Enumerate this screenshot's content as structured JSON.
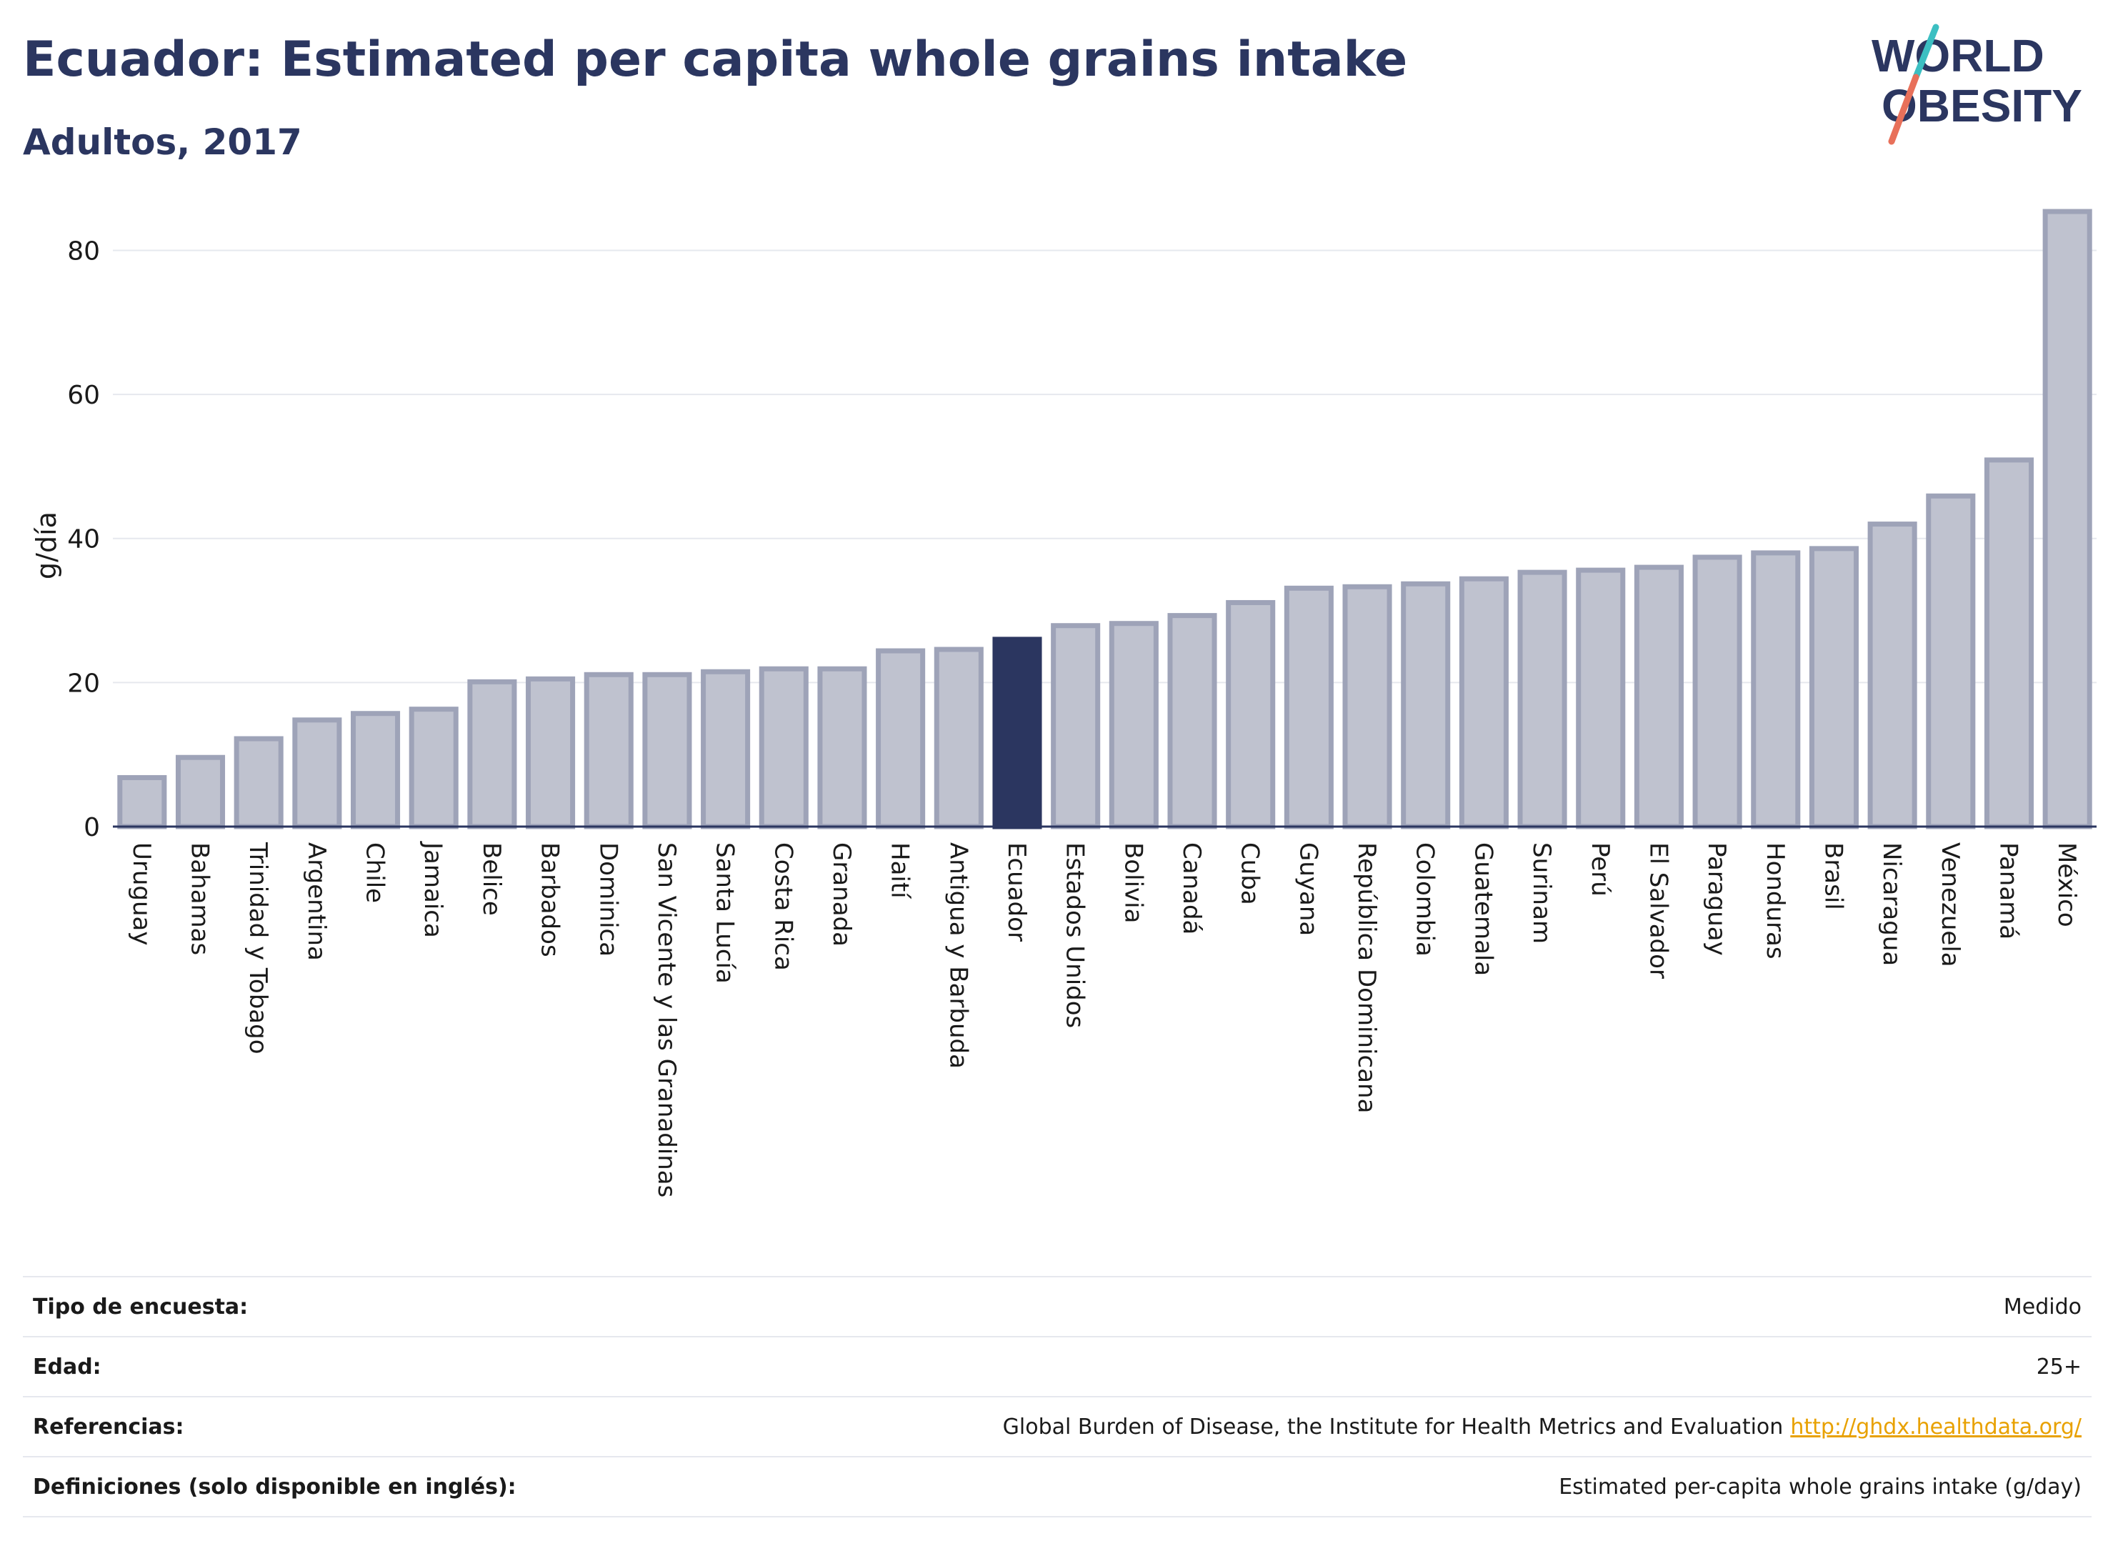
{
  "header": {
    "title": "Ecuador: Estimated per capita whole grains intake",
    "subtitle": "Adultos, 2017"
  },
  "logo": {
    "line1": "WORLD",
    "line2": "OBESITY",
    "colors": {
      "text": "#2b3660",
      "slash_top": "#3cbfc2",
      "slash_bottom": "#e8705a"
    }
  },
  "chart_data": {
    "type": "bar",
    "ylabel": "g/día",
    "ylim": [
      0,
      86
    ],
    "yticks": [
      0,
      20,
      40,
      60,
      80
    ],
    "grid": true,
    "highlight": "Ecuador",
    "colors": {
      "bar": "#bfc2cf",
      "bar_edge": "#9ea3b8",
      "highlight": "#2b3660",
      "grid": "#e6e8ee",
      "axis": "#2b3660"
    },
    "categories": [
      "Uruguay",
      "Bahamas",
      "Trinidad y Tobago",
      "Argentina",
      "Chile",
      "Jamaica",
      "Belice",
      "Barbados",
      "Dominica",
      "San Vicente y las Granadinas",
      "Santa Lucía",
      "Costa Rica",
      "Granada",
      "Haití",
      "Antigua y Barbuda",
      "Ecuador",
      "Estados Unidos",
      "Bolivia",
      "Canadá",
      "Cuba",
      "Guyana",
      "República Dominicana",
      "Colombia",
      "Guatemala",
      "Surinam",
      "Perú",
      "El Salvador",
      "Paraguay",
      "Honduras",
      "Brasil",
      "Nicaragua",
      "Venezuela",
      "Panamá",
      "México"
    ],
    "values": [
      6.8,
      9.6,
      12.2,
      14.8,
      15.7,
      16.3,
      20.1,
      20.5,
      21.1,
      21.1,
      21.5,
      21.9,
      21.9,
      24.4,
      24.6,
      26.0,
      27.9,
      28.2,
      29.3,
      31.1,
      33.1,
      33.3,
      33.7,
      34.4,
      35.3,
      35.6,
      36.0,
      37.4,
      38.0,
      38.6,
      42.0,
      45.9,
      50.9,
      85.4
    ]
  },
  "meta": {
    "rows": [
      {
        "label": "Tipo de encuesta:",
        "value": "Medido"
      },
      {
        "label": "Edad:",
        "value": "25+"
      },
      {
        "label": "Referencias:",
        "value": "Global Burden of Disease, the Institute for Health Metrics and Evaluation",
        "link": "http://ghdx.healthdata.org/"
      },
      {
        "label": "Definiciones (solo disponible en inglés):",
        "value": "Estimated per-capita whole grains intake (g/day)"
      }
    ]
  }
}
